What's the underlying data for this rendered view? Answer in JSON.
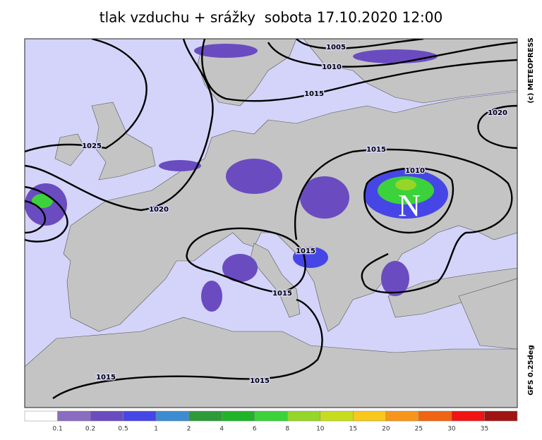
{
  "title": "tlak vzduchu + srážky  sobota 17.10.2020 12:00",
  "isobar_labels": [
    "1005",
    "1010",
    "1015",
    "1020",
    "1025",
    "1020",
    "1015",
    "1010",
    "1015",
    "1015",
    "1015",
    "1015"
  ],
  "map_label": "N",
  "credits": [
    "(c) METEOPRESS",
    "GFS 0.25deg"
  ],
  "legend": {
    "labels": [
      "0.1",
      "0.2",
      "0.5",
      "1",
      "2",
      "4",
      "6",
      "8",
      "10",
      "15",
      "20",
      "25",
      "30",
      "35"
    ],
    "colors": [
      "#ffffff",
      "#8a6cc0",
      "#6a4cc0",
      "#4646e6",
      "#3c8cd2",
      "#2e9a3a",
      "#20b428",
      "#3cd23c",
      "#96d628",
      "#c8dc1e",
      "#f8c81c",
      "#f8961c",
      "#f06414",
      "#f01414",
      "#a01414"
    ]
  }
}
